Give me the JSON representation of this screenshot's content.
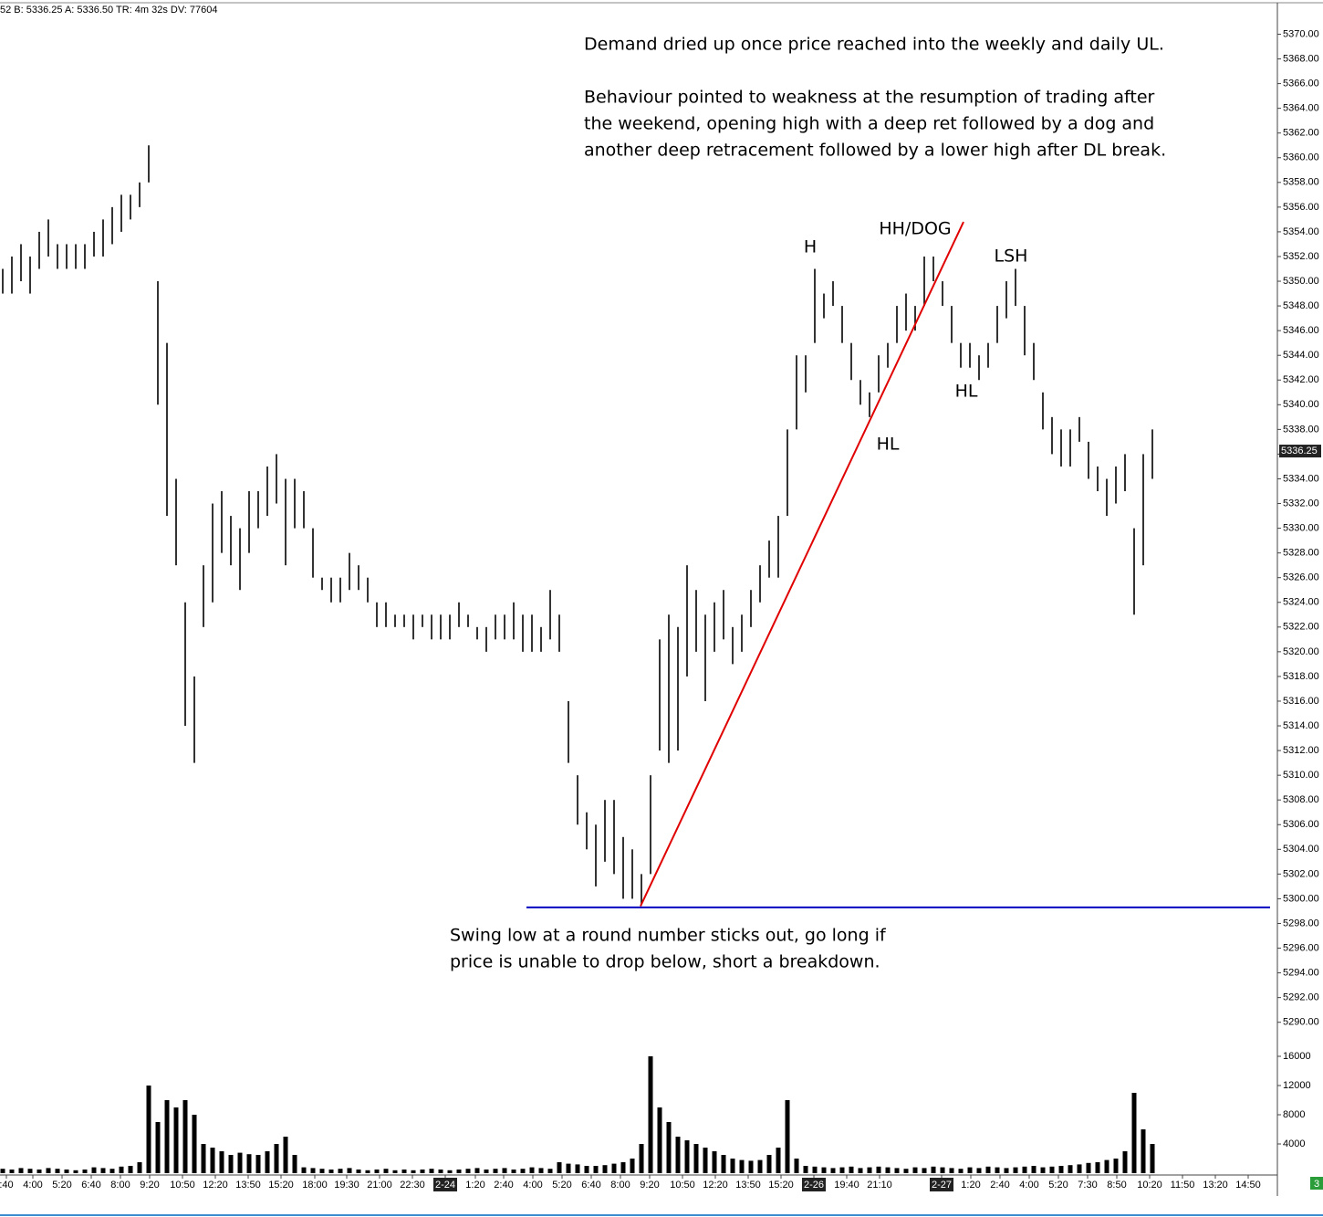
{
  "chart_data": {
    "type": "hl",
    "header": "52 B: 5336.25 A: 5336.50 TR: 4m 32s DV: 77604",
    "high": [
      5351,
      5352,
      5353,
      5352,
      5354,
      5355,
      5353,
      5353,
      5353,
      5353,
      5354,
      5355,
      5356,
      5357,
      5357,
      5358,
      5361,
      5350,
      5345,
      5334,
      5324,
      5318,
      5327,
      5332,
      5333,
      5331,
      5330,
      5333,
      5333,
      5335,
      5336,
      5334,
      5334,
      5333,
      5330,
      5326,
      5326,
      5326,
      5328,
      5327,
      5326,
      5324,
      5324,
      5323,
      5323,
      5323,
      5323,
      5323,
      5323,
      5323,
      5324,
      5323,
      5322,
      5322,
      5323,
      5323,
      5324,
      5323,
      5323,
      5322,
      5325,
      5323,
      5316,
      5310,
      5307,
      5306,
      5308,
      5308,
      5305,
      5304,
      5302,
      5310,
      5321,
      5323,
      5322,
      5327,
      5325,
      5323,
      5324,
      5325,
      5322,
      5323,
      5325,
      5327,
      5329,
      5331,
      5338,
      5344,
      5344,
      5351,
      5349,
      5350,
      5348,
      5345,
      5342,
      5341,
      5344,
      5345,
      5348,
      5349,
      5348,
      5352,
      5352,
      5350,
      5348,
      5345,
      5345,
      5344,
      5345,
      5348,
      5350,
      5351,
      5348,
      5345,
      5341,
      5339,
      5338,
      5338,
      5339,
      5337,
      5335,
      5334,
      5335,
      5336,
      5330,
      5336,
      5338
    ],
    "low": [
      5349,
      5349,
      5350,
      5349,
      5351,
      5352,
      5351,
      5351,
      5351,
      5351,
      5352,
      5352,
      5353,
      5354,
      5355,
      5356,
      5358,
      5340,
      5331,
      5327,
      5314,
      5311,
      5322,
      5324,
      5328,
      5327,
      5325,
      5328,
      5330,
      5331,
      5332,
      5327,
      5330,
      5330,
      5326,
      5325,
      5324,
      5324,
      5325,
      5325,
      5324,
      5322,
      5322,
      5322,
      5322,
      5321,
      5322,
      5321,
      5321,
      5321,
      5322,
      5322,
      5321,
      5320,
      5321,
      5321,
      5321,
      5320,
      5320,
      5320,
      5321,
      5320,
      5311,
      5306,
      5304,
      5301,
      5303,
      5302,
      5300,
      5300,
      5299.5,
      5302,
      5312,
      5311,
      5312,
      5318,
      5320,
      5316,
      5320,
      5321,
      5319,
      5320,
      5322,
      5324,
      5326,
      5326,
      5331,
      5338,
      5341,
      5345,
      5347,
      5348,
      5345,
      5342,
      5340,
      5339,
      5341,
      5343,
      5345,
      5346,
      5346,
      5348,
      5350,
      5348,
      5345,
      5343,
      5343,
      5342,
      5343,
      5345,
      5347,
      5348,
      5344,
      5342,
      5338,
      5336,
      5335,
      5335,
      5337,
      5334,
      5333,
      5331,
      5332,
      5333,
      5323,
      5327,
      5334
    ],
    "color": "#000000",
    "ylim": [
      5288.5,
      5372.4
    ],
    "yticks": [
      {
        "value": 5290,
        "label": "5290.00"
      },
      {
        "value": 5292,
        "label": "5292.00"
      },
      {
        "value": 5294,
        "label": "5294.00"
      },
      {
        "value": 5296,
        "label": "5296.00"
      },
      {
        "value": 5298,
        "label": "5298.00"
      },
      {
        "value": 5300,
        "label": "5300.00"
      },
      {
        "value": 5302,
        "label": "5302.00"
      },
      {
        "value": 5304,
        "label": "5304.00"
      },
      {
        "value": 5306,
        "label": "5306.00"
      },
      {
        "value": 5308,
        "label": "5308.00"
      },
      {
        "value": 5310,
        "label": "5310.00"
      },
      {
        "value": 5312,
        "label": "5312.00"
      },
      {
        "value": 5314,
        "label": "5314.00"
      },
      {
        "value": 5316,
        "label": "5316.00"
      },
      {
        "value": 5318,
        "label": "5318.00"
      },
      {
        "value": 5320,
        "label": "5320.00"
      },
      {
        "value": 5322,
        "label": "5322.00"
      },
      {
        "value": 5324,
        "label": "5324.00"
      },
      {
        "value": 5326,
        "label": "5326.00"
      },
      {
        "value": 5328,
        "label": "5328.00"
      },
      {
        "value": 5330,
        "label": "5330.00"
      },
      {
        "value": 5332,
        "label": "5332.00"
      },
      {
        "value": 5334,
        "label": "5334.00"
      },
      {
        "value": 5336,
        "label": "5336.00"
      },
      {
        "value": 5338,
        "label": "5338.00"
      },
      {
        "value": 5340,
        "label": "5340.00"
      },
      {
        "value": 5342,
        "label": "5342.00"
      },
      {
        "value": 5344,
        "label": "5344.00"
      },
      {
        "value": 5346,
        "label": "5346.00"
      },
      {
        "value": 5348,
        "label": "5348.00"
      },
      {
        "value": 5350,
        "label": "5350.00"
      },
      {
        "value": 5352,
        "label": "5352.00"
      },
      {
        "value": 5354,
        "label": "5354.00"
      },
      {
        "value": 5356,
        "label": "5356.00"
      },
      {
        "value": 5358,
        "label": "5358.00"
      },
      {
        "value": 5360,
        "label": "5360.00"
      },
      {
        "value": 5362,
        "label": "5362.00"
      },
      {
        "value": 5364,
        "label": "5364.00"
      },
      {
        "value": 5366,
        "label": "5366.00"
      },
      {
        "value": 5368,
        "label": "5368.00"
      },
      {
        "value": 5370,
        "label": "5370.00"
      }
    ],
    "last_price": 5336.25,
    "xlim": [
      -0.3,
      139.7
    ],
    "xticks": [
      {
        "value": 0.4,
        "label": ":40"
      },
      {
        "value": 3.3,
        "label": "4:00"
      },
      {
        "value": 6.5,
        "label": "5:20"
      },
      {
        "value": 9.7,
        "label": "6:40"
      },
      {
        "value": 12.9,
        "label": "8:00"
      },
      {
        "value": 16.1,
        "label": "9:20"
      },
      {
        "value": 19.7,
        "label": "10:50"
      },
      {
        "value": 23.3,
        "label": "12:20"
      },
      {
        "value": 26.9,
        "label": "13:50"
      },
      {
        "value": 30.5,
        "label": "15:20"
      },
      {
        "value": 34.2,
        "label": "18:00"
      },
      {
        "value": 37.7,
        "label": "19:30"
      },
      {
        "value": 41.3,
        "label": "21:00"
      },
      {
        "value": 44.9,
        "label": "22:30"
      },
      {
        "value": 48.5,
        "label": "2-24"
      },
      {
        "value": 51.8,
        "label": "1:20"
      },
      {
        "value": 54.9,
        "label": "2:40"
      },
      {
        "value": 58.1,
        "label": "4:00"
      },
      {
        "value": 61.3,
        "label": "5:20"
      },
      {
        "value": 64.5,
        "label": "6:40"
      },
      {
        "value": 67.7,
        "label": "8:00"
      },
      {
        "value": 70.9,
        "label": "9:20"
      },
      {
        "value": 74.5,
        "label": "10:50"
      },
      {
        "value": 78.1,
        "label": "12:20"
      },
      {
        "value": 81.7,
        "label": "13:50"
      },
      {
        "value": 85.3,
        "label": "15:20"
      },
      {
        "value": 88.9,
        "label": "2-26"
      },
      {
        "value": 92.5,
        "label": "19:40"
      },
      {
        "value": 96.1,
        "label": "21:10"
      },
      {
        "value": 102.9,
        "label": "2-27"
      },
      {
        "value": 106.1,
        "label": "1:20"
      },
      {
        "value": 109.3,
        "label": "2:40"
      },
      {
        "value": 112.5,
        "label": "4:00"
      },
      {
        "value": 115.7,
        "label": "5:20"
      },
      {
        "value": 118.9,
        "label": "7:30"
      },
      {
        "value": 122.1,
        "label": "8:50"
      },
      {
        "value": 125.7,
        "label": "10:20"
      },
      {
        "value": 129.3,
        "label": "11:50"
      },
      {
        "value": 132.9,
        "label": "13:20"
      },
      {
        "value": 136.5,
        "label": "14:50"
      }
    ],
    "volume": {
      "values": [
        600,
        500,
        700,
        600,
        500,
        700,
        600,
        500,
        400,
        500,
        800,
        700,
        600,
        900,
        1000,
        1500,
        12000,
        7000,
        10000,
        9000,
        10000,
        8000,
        4000,
        3500,
        3000,
        2500,
        2800,
        2600,
        2500,
        3000,
        4000,
        5000,
        2500,
        800,
        700,
        600,
        500,
        600,
        700,
        500,
        400,
        500,
        600,
        400,
        500,
        400,
        500,
        600,
        500,
        400,
        500,
        600,
        700,
        500,
        600,
        700,
        500,
        600,
        800,
        700,
        600,
        1500,
        1300,
        1200,
        1000,
        1000,
        1100,
        1300,
        1500,
        2000,
        4000,
        16000,
        9000,
        7000,
        5000,
        4500,
        4000,
        3500,
        3000,
        2500,
        2000,
        1800,
        1700,
        1800,
        2500,
        3500,
        10000,
        2000,
        1000,
        900,
        800,
        700,
        800,
        900,
        700,
        800,
        900,
        800,
        700,
        600,
        800,
        700,
        900,
        800,
        700,
        600,
        800,
        700,
        900,
        800,
        700,
        800,
        900,
        1000,
        800,
        900,
        1000,
        1100,
        1200,
        1400,
        1500,
        1800,
        2000,
        3000,
        11000,
        6000,
        4000
      ],
      "color": "#000000",
      "ylim": [
        0,
        17000
      ],
      "yticks": [
        4000,
        8000,
        12000,
        16000
      ]
    },
    "lines": [
      {
        "x": [
          69.9,
          105.3
        ],
        "y": [
          5299.4,
          5354.8
        ],
        "color": "#e00000"
      },
      {
        "x": [
          57.4,
          138.9
        ],
        "y": [
          5299.3,
          5299.3
        ],
        "color": "#0000c0"
      }
    ],
    "annotations": {
      "top": [
        "Demand dried up once price reached into the weekly and daily UL.",
        "Behaviour pointed to weakness at the resumption of trading after",
        "the weekend, opening high with a deep ret followed by a dog and",
        "another deep retracement followed by a lower high after DL break."
      ],
      "bottom": [
        "Swing low at a round number sticks out, go long if",
        "price is unable to drop below, short a breakdown."
      ],
      "labels": [
        "H",
        "HH/DOG",
        "LSH",
        "HL",
        "HL"
      ]
    },
    "badge": "3"
  }
}
